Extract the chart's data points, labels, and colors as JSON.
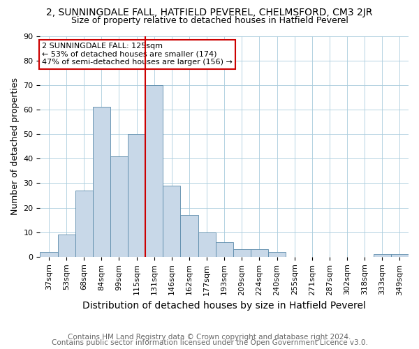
{
  "title1": "2, SUNNINGDALE FALL, HATFIELD PEVEREL, CHELMSFORD, CM3 2JR",
  "title2": "Size of property relative to detached houses in Hatfield Peverel",
  "xlabel": "Distribution of detached houses by size in Hatfield Peverel",
  "ylabel": "Number of detached properties",
  "footer1": "Contains HM Land Registry data © Crown copyright and database right 2024.",
  "footer2": "Contains public sector information licensed under the Open Government Licence v3.0.",
  "categories": [
    "37sqm",
    "53sqm",
    "68sqm",
    "84sqm",
    "99sqm",
    "115sqm",
    "131sqm",
    "146sqm",
    "162sqm",
    "177sqm",
    "193sqm",
    "209sqm",
    "224sqm",
    "240sqm",
    "255sqm",
    "271sqm",
    "287sqm",
    "302sqm",
    "318sqm",
    "333sqm",
    "349sqm"
  ],
  "values": [
    2,
    9,
    27,
    61,
    41,
    50,
    70,
    29,
    17,
    10,
    6,
    3,
    3,
    2,
    0,
    0,
    0,
    0,
    0,
    1,
    1
  ],
  "bar_color": "#c8d8e8",
  "bar_edge_color": "#5a8aaa",
  "vline_color": "#cc0000",
  "annotation_text": "2 SUNNINGDALE FALL: 125sqm\n← 53% of detached houses are smaller (174)\n47% of semi-detached houses are larger (156) →",
  "annotation_box_color": "#ffffff",
  "annotation_box_edge": "#cc0000",
  "ylim": [
    0,
    90
  ],
  "yticks": [
    0,
    10,
    20,
    30,
    40,
    50,
    60,
    70,
    80,
    90
  ],
  "bg_color": "#ffffff",
  "grid_color": "#aaccdd",
  "title1_fontsize": 10,
  "title2_fontsize": 9,
  "xlabel_fontsize": 10,
  "ylabel_fontsize": 9,
  "tick_fontsize": 8,
  "footer_fontsize": 7.5,
  "annotation_fontsize": 8
}
